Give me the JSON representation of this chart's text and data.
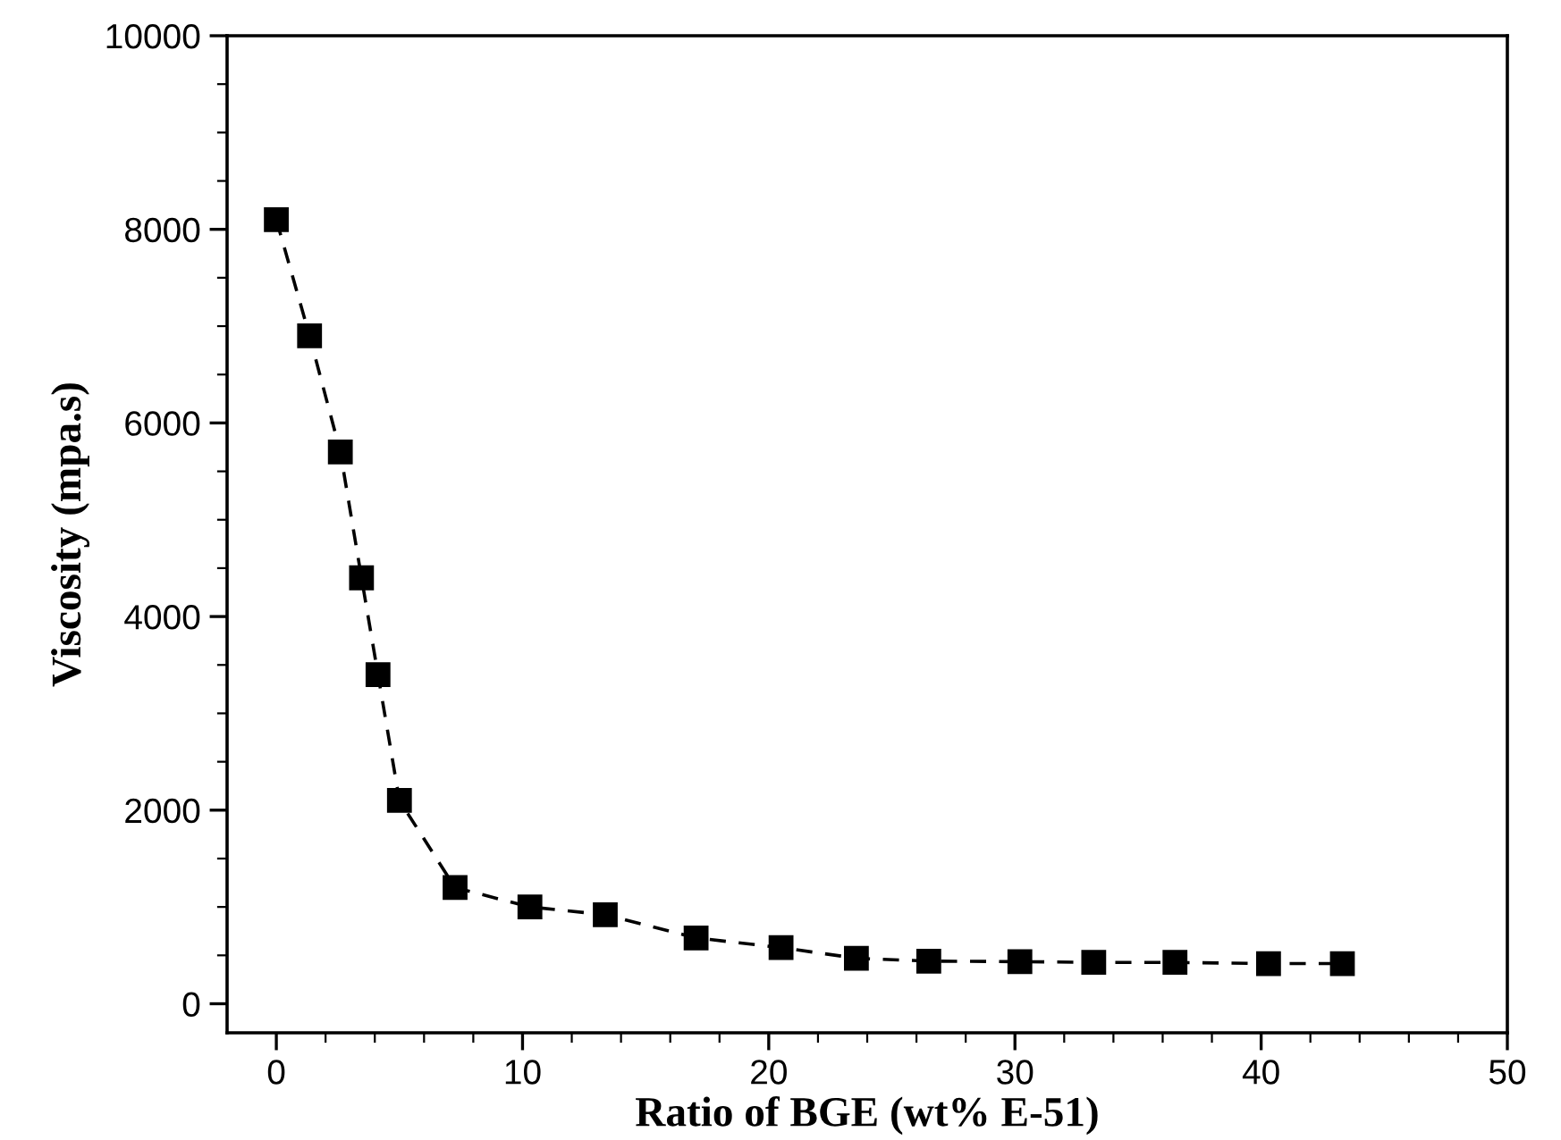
{
  "chart_data": {
    "type": "line",
    "xlabel": "Ratio of BGE (wt% E-51)",
    "ylabel": "Viscosity (mpa.s)",
    "x": [
      0,
      1.35,
      2.6,
      3.46,
      4.13,
      5.0,
      7.26,
      10.3,
      13.36,
      17.05,
      20.5,
      23.56,
      26.5,
      30.2,
      33.2,
      36.5,
      40.3,
      43.3
    ],
    "series": [
      {
        "color": "#000000",
        "values": [
          8100,
          6900,
          5700,
          4400,
          3400,
          2100,
          1200,
          1000,
          920,
          680,
          580,
          470,
          440,
          435,
          427,
          427,
          415,
          415
        ]
      }
    ],
    "marker": "square",
    "line_style": "dashed",
    "grid": false,
    "legend": false,
    "xlim": [
      -2,
      50
    ],
    "ylim": [
      -300,
      10000
    ],
    "xticks": [
      0,
      {
        "value": 2,
        "label": null
      },
      {
        "value": 4,
        "label": null
      },
      {
        "value": 6,
        "label": null
      },
      {
        "value": 8,
        "label": null
      },
      10,
      {
        "value": 12,
        "label": null
      },
      {
        "value": 14,
        "label": null
      },
      {
        "value": 16,
        "label": null
      },
      {
        "value": 18,
        "label": null
      },
      20,
      {
        "value": 22,
        "label": null
      },
      {
        "value": 24,
        "label": null
      },
      {
        "value": 26,
        "label": null
      },
      {
        "value": 28,
        "label": null
      },
      30,
      {
        "value": 32,
        "label": null
      },
      {
        "value": 34,
        "label": null
      },
      {
        "value": 36,
        "label": null
      },
      {
        "value": 38,
        "label": null
      },
      40,
      {
        "value": 42,
        "label": null
      },
      {
        "value": 44,
        "label": null
      },
      {
        "value": 46,
        "label": null
      },
      {
        "value": 48,
        "label": null
      },
      50
    ],
    "yticks": [
      0,
      {
        "value": 500,
        "label": null
      },
      {
        "value": 1000,
        "label": null
      },
      {
        "value": 1500,
        "label": null
      },
      2000,
      {
        "value": 2500,
        "label": null
      },
      {
        "value": 3000,
        "label": null
      },
      {
        "value": 3500,
        "label": null
      },
      4000,
      {
        "value": 4500,
        "label": null
      },
      {
        "value": 5000,
        "label": null
      },
      {
        "value": 5500,
        "label": null
      },
      6000,
      {
        "value": 6500,
        "label": null
      },
      {
        "value": 7000,
        "label": null
      },
      {
        "value": 7500,
        "label": null
      },
      8000,
      {
        "value": 8500,
        "label": null
      },
      {
        "value": 9000,
        "label": null
      },
      {
        "value": 9500,
        "label": null
      },
      10000
    ]
  }
}
